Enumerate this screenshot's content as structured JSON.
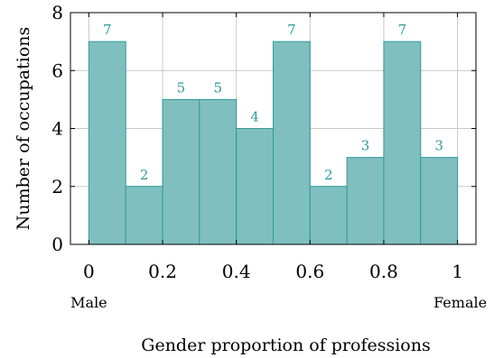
{
  "chart_data": {
    "type": "bar",
    "title": "",
    "xlabel": "Gender proportion of professions",
    "ylabel": "Number of occupations",
    "x_annotations": {
      "left": "Male",
      "right": "Female"
    },
    "bin_edges": [
      0,
      0.1,
      0.2,
      0.3,
      0.4,
      0.5,
      0.6,
      0.7,
      0.8,
      0.9,
      1.0
    ],
    "values": [
      7,
      2,
      5,
      5,
      4,
      7,
      2,
      3,
      7,
      3
    ],
    "value_labels": [
      "7",
      "2",
      "5",
      "5",
      "4",
      "7",
      "2",
      "3",
      "7",
      "3"
    ],
    "xlim": [
      -0.05,
      1.05
    ],
    "ylim": [
      0,
      8
    ],
    "x_ticks": [
      0,
      0.2,
      0.4,
      0.6,
      0.8,
      1
    ],
    "x_tick_labels": [
      "0",
      "0.2",
      "0.4",
      "0.6",
      "0.8",
      "1"
    ],
    "y_ticks": [
      0,
      2,
      4,
      6,
      8
    ],
    "y_tick_labels": [
      "0",
      "2",
      "4",
      "6",
      "8"
    ],
    "grid": true,
    "colors": {
      "bar_fill": "#80bfbf",
      "bar_stroke": "#2e9a9a",
      "label": "#2e9a9a",
      "grid": "#c8c8c8"
    }
  }
}
